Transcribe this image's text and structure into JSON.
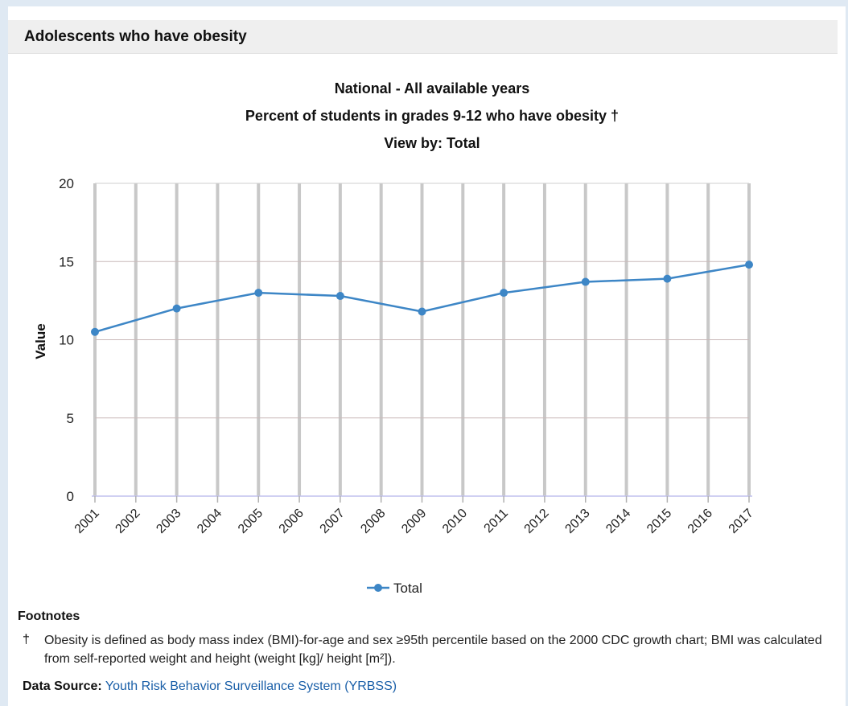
{
  "panel": {
    "title": "Adolescents who have obesity"
  },
  "chart_data": {
    "type": "line",
    "title_lines": [
      "National - All available years",
      "Percent of students in grades 9-12 who have obesity †",
      "View by: Total"
    ],
    "xlabel": "",
    "ylabel": "Value",
    "categories": [
      "2001",
      "2002",
      "2003",
      "2004",
      "2005",
      "2006",
      "2007",
      "2008",
      "2009",
      "2010",
      "2011",
      "2012",
      "2013",
      "2014",
      "2015",
      "2016",
      "2017"
    ],
    "yticks": [
      "0",
      "5",
      "10",
      "15",
      "20"
    ],
    "ylim": [
      0,
      20
    ],
    "grid": true,
    "legend": "bottom-center",
    "series": [
      {
        "name": "Total",
        "color": "#3d86c6",
        "values": [
          10.5,
          null,
          12.0,
          null,
          13.0,
          null,
          12.8,
          null,
          11.8,
          null,
          13.0,
          null,
          13.7,
          null,
          13.9,
          null,
          14.8
        ]
      }
    ]
  },
  "footnotes": {
    "label": "Footnotes",
    "mark": "†",
    "text": "Obesity is defined as body mass index (BMI)-for-age and sex ≥95th percentile based on the 2000 CDC growth chart; BMI was calculated from self-reported weight and height (weight [kg]/ height [m²])."
  },
  "source": {
    "label": "Data Source:",
    "link_text": "Youth Risk Behavior Surveillance System (YRBSS)"
  }
}
